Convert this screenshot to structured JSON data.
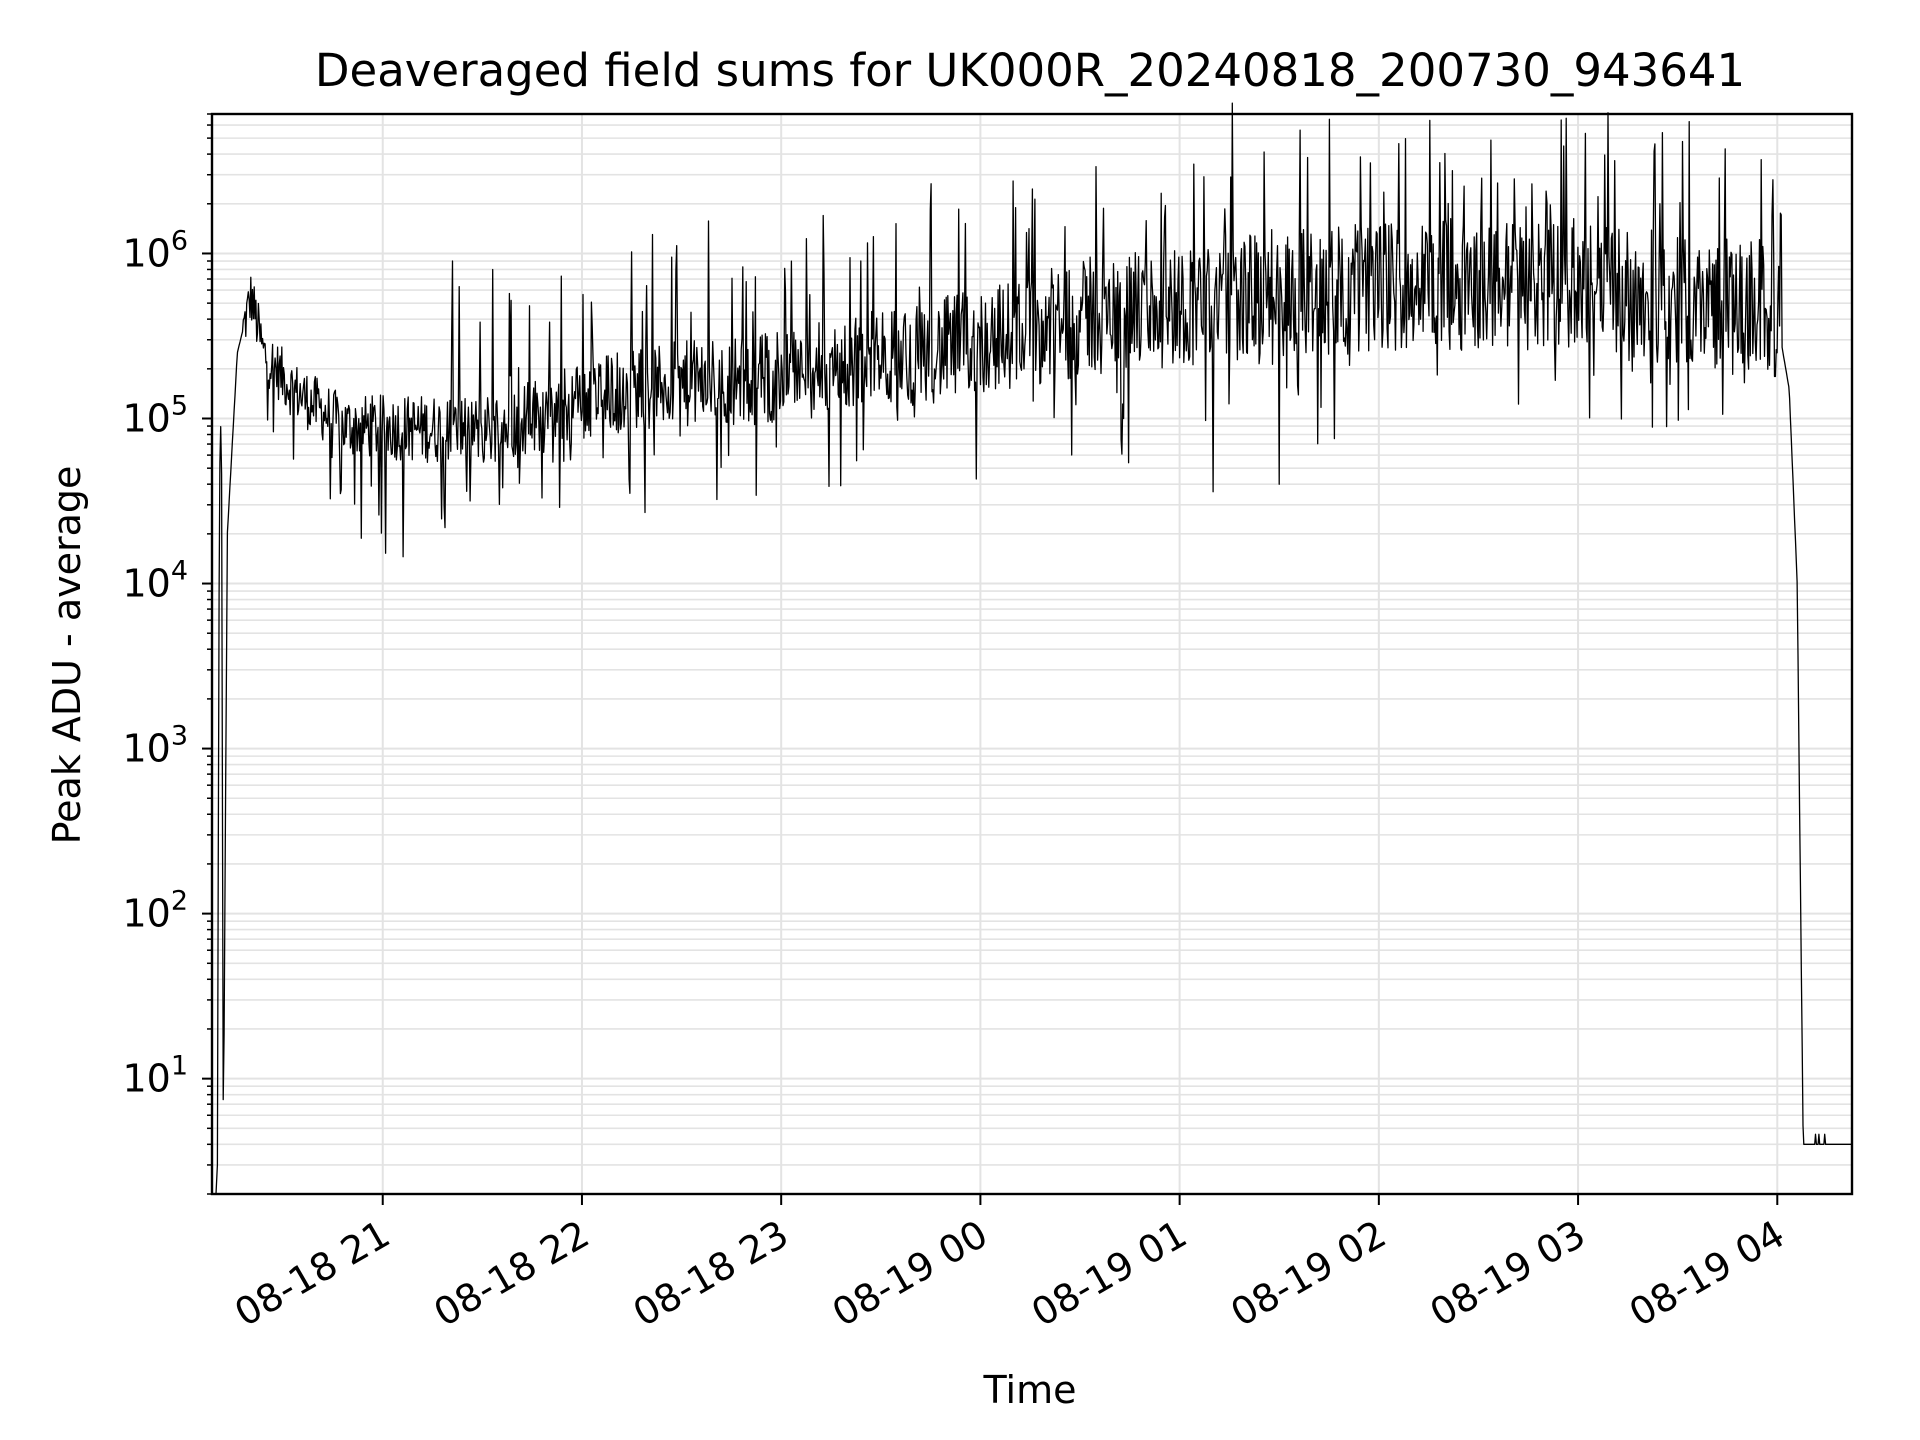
{
  "chart_data": {
    "type": "line",
    "title": "Deaveraged field sums for UK000R_20240818_200730_943641",
    "xlabel": "Time",
    "ylabel": "Peak ADU - average",
    "yscale": "log",
    "ylim": [
      2,
      7000000
    ],
    "xlim_hours": [
      20.143,
      28.375
    ],
    "grid": true,
    "line_color": "#000000",
    "grid_color": "#e3e3e3",
    "x_ticks": [
      {
        "label": "08-18 21",
        "hour": 21
      },
      {
        "label": "08-18 22",
        "hour": 22
      },
      {
        "label": "08-18 23",
        "hour": 23
      },
      {
        "label": "08-19 00",
        "hour": 24
      },
      {
        "label": "08-19 01",
        "hour": 25
      },
      {
        "label": "08-19 02",
        "hour": 26
      },
      {
        "label": "08-19 03",
        "hour": 27
      },
      {
        "label": "08-19 04",
        "hour": 28
      }
    ],
    "y_ticks": [
      {
        "base": "10",
        "exp": "1",
        "value": 10
      },
      {
        "base": "10",
        "exp": "2",
        "value": 100
      },
      {
        "base": "10",
        "exp": "3",
        "value": 1000
      },
      {
        "base": "10",
        "exp": "4",
        "value": 10000
      },
      {
        "base": "10",
        "exp": "5",
        "value": 100000
      },
      {
        "base": "10",
        "exp": "6",
        "value": 1000000
      }
    ],
    "series": [
      {
        "name": "Peak ADU - average",
        "anchors": [
          {
            "t": 20.17,
            "v": 3
          },
          {
            "t": 20.18,
            "v": 40000
          },
          {
            "t": 20.19,
            "v": 130000
          },
          {
            "t": 20.2,
            "v": 4
          },
          {
            "t": 20.22,
            "v": 20000
          },
          {
            "t": 20.27,
            "v": 250000
          },
          {
            "t": 20.34,
            "v": 550000
          },
          {
            "t": 20.4,
            "v": 250000
          },
          {
            "t": 20.55,
            "v": 150000
          },
          {
            "t": 20.8,
            "v": 90000
          },
          {
            "t": 21.5,
            "v": 85000
          },
          {
            "t": 22.2,
            "v": 150000
          },
          {
            "t": 23.0,
            "v": 180000
          },
          {
            "t": 23.8,
            "v": 260000
          },
          {
            "t": 24.5,
            "v": 400000
          },
          {
            "t": 25.3,
            "v": 550000
          },
          {
            "t": 26.2,
            "v": 650000
          },
          {
            "t": 27.0,
            "v": 650000
          },
          {
            "t": 27.6,
            "v": 500000
          },
          {
            "t": 27.92,
            "v": 500000
          },
          {
            "t": 28.0,
            "v": 400000
          },
          {
            "t": 28.06,
            "v": 150000
          },
          {
            "t": 28.1,
            "v": 10000
          },
          {
            "t": 28.13,
            "v": 4
          },
          {
            "t": 28.375,
            "v": 4
          }
        ],
        "spikes": [
          {
            "t": 21.35,
            "v": 900000
          },
          {
            "t": 21.55,
            "v": 800000
          },
          {
            "t": 22.45,
            "v": 950000
          },
          {
            "t": 23.4,
            "v": 900000
          },
          {
            "t": 24.55,
            "v": 950000
          },
          {
            "t": 25.2,
            "v": 1000000
          },
          {
            "t": 25.5,
            "v": 1000000
          },
          {
            "t": 26.8,
            "v": 1500000
          },
          {
            "t": 27.41,
            "v": 2000000
          },
          {
            "t": 27.92,
            "v": 3700000
          }
        ],
        "dips": [
          {
            "t": 20.79,
            "v": 37000
          },
          {
            "t": 21.8,
            "v": 33000
          },
          {
            "t": 23.98,
            "v": 43000
          },
          {
            "t": 25.17,
            "v": 36000
          },
          {
            "t": 25.5,
            "v": 40000
          }
        ]
      }
    ]
  }
}
